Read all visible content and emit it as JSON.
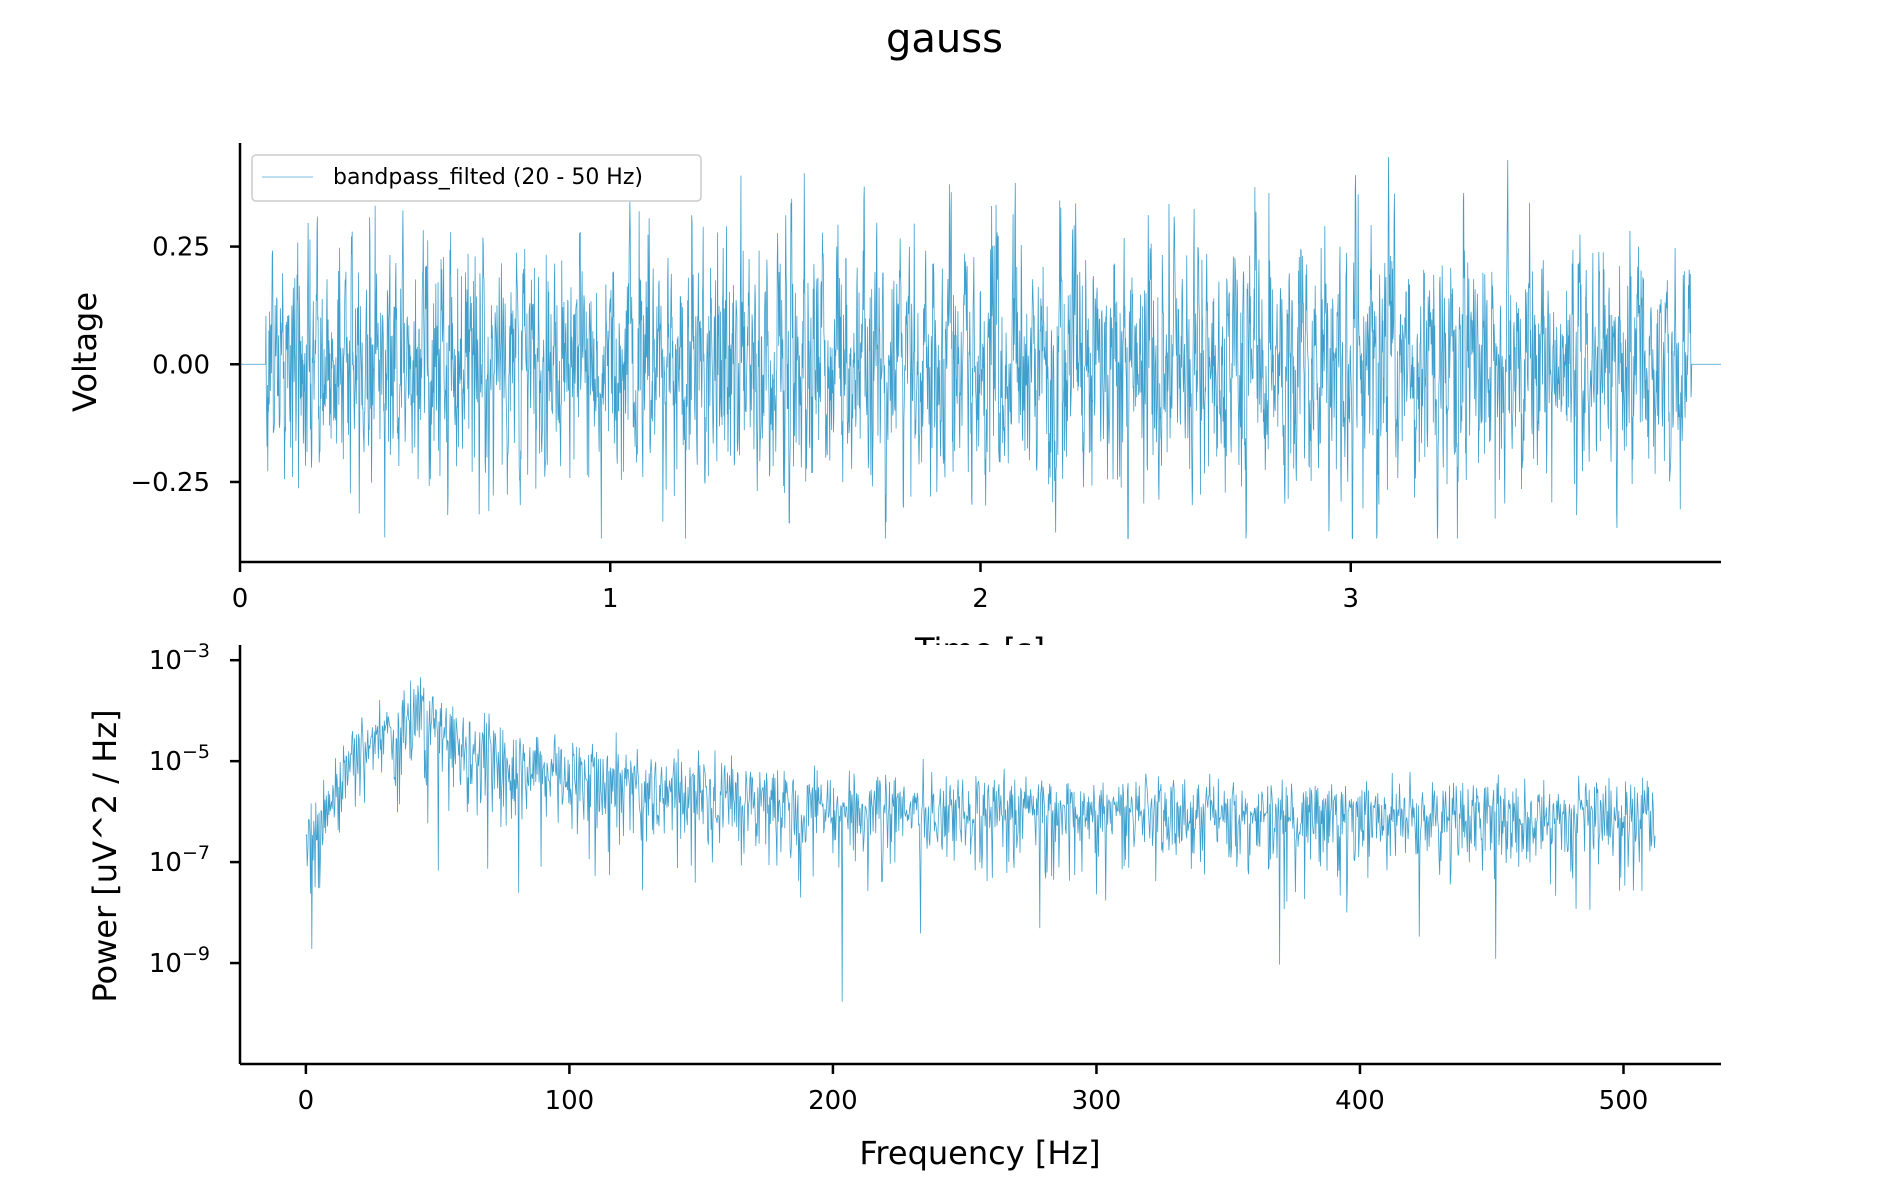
{
  "figure": {
    "title": "gauss"
  },
  "colors": {
    "series": "#1f8fc4",
    "axis": "#000000",
    "legend_border": "#cccccc"
  },
  "chart_data": [
    {
      "type": "line",
      "xlabel": "Time [s]",
      "ylabel": "Voltage",
      "xlim": [
        0,
        4.0
      ],
      "ylim": [
        -0.42,
        0.47
      ],
      "x_ticks": [
        0,
        1,
        2,
        3
      ],
      "x_tick_labels": [
        "0",
        "1",
        "2",
        "3"
      ],
      "y_ticks": [
        -0.25,
        0.0,
        0.25
      ],
      "y_tick_labels": [
        "−0.25",
        "0.00",
        "0.25"
      ],
      "grid": false,
      "legend_position": "top-left",
      "series": [
        {
          "name": "bandpass_filted (20 - 50 Hz)",
          "signal": "gaussian noise band-limited to 20–50 Hz",
          "x_start": 0.0,
          "x_end": 4.0,
          "active_start": 0.07,
          "active_end": 3.92,
          "amplitude_std": 0.12,
          "peak_max": 0.44,
          "peak_min": -0.37
        }
      ]
    },
    {
      "type": "line",
      "xlabel": "Frequency [Hz]",
      "ylabel": "Power [uV^2 / Hz]",
      "xlim": [
        -25,
        537
      ],
      "ylim": [
        1e-11,
        0.002
      ],
      "yscale": "log",
      "x_ticks": [
        0,
        100,
        200,
        300,
        400,
        500
      ],
      "x_tick_labels": [
        "0",
        "100",
        "200",
        "300",
        "400",
        "500"
      ],
      "y_ticks": [
        0.001,
        1e-05,
        1e-07,
        1e-09
      ],
      "y_tick_bases": [
        "10",
        "10",
        "10",
        "10"
      ],
      "y_tick_exponents": [
        "−3",
        "−5",
        "−7",
        "−9"
      ],
      "grid": false,
      "series": [
        {
          "name": "",
          "x_start": 0,
          "x_end": 512,
          "envelope_freqs": [
            0,
            10,
            20,
            30,
            40,
            50,
            60,
            80,
            100,
            150,
            200,
            300,
            400,
            512
          ],
          "envelope_power": [
            3e-07,
            2e-06,
            2e-05,
            6e-05,
            7e-05,
            8e-05,
            2.5e-05,
            1.2e-05,
            6e-06,
            3e-06,
            1.5e-06,
            1.2e-06,
            1e-06,
            1e-06
          ]
        }
      ]
    }
  ]
}
